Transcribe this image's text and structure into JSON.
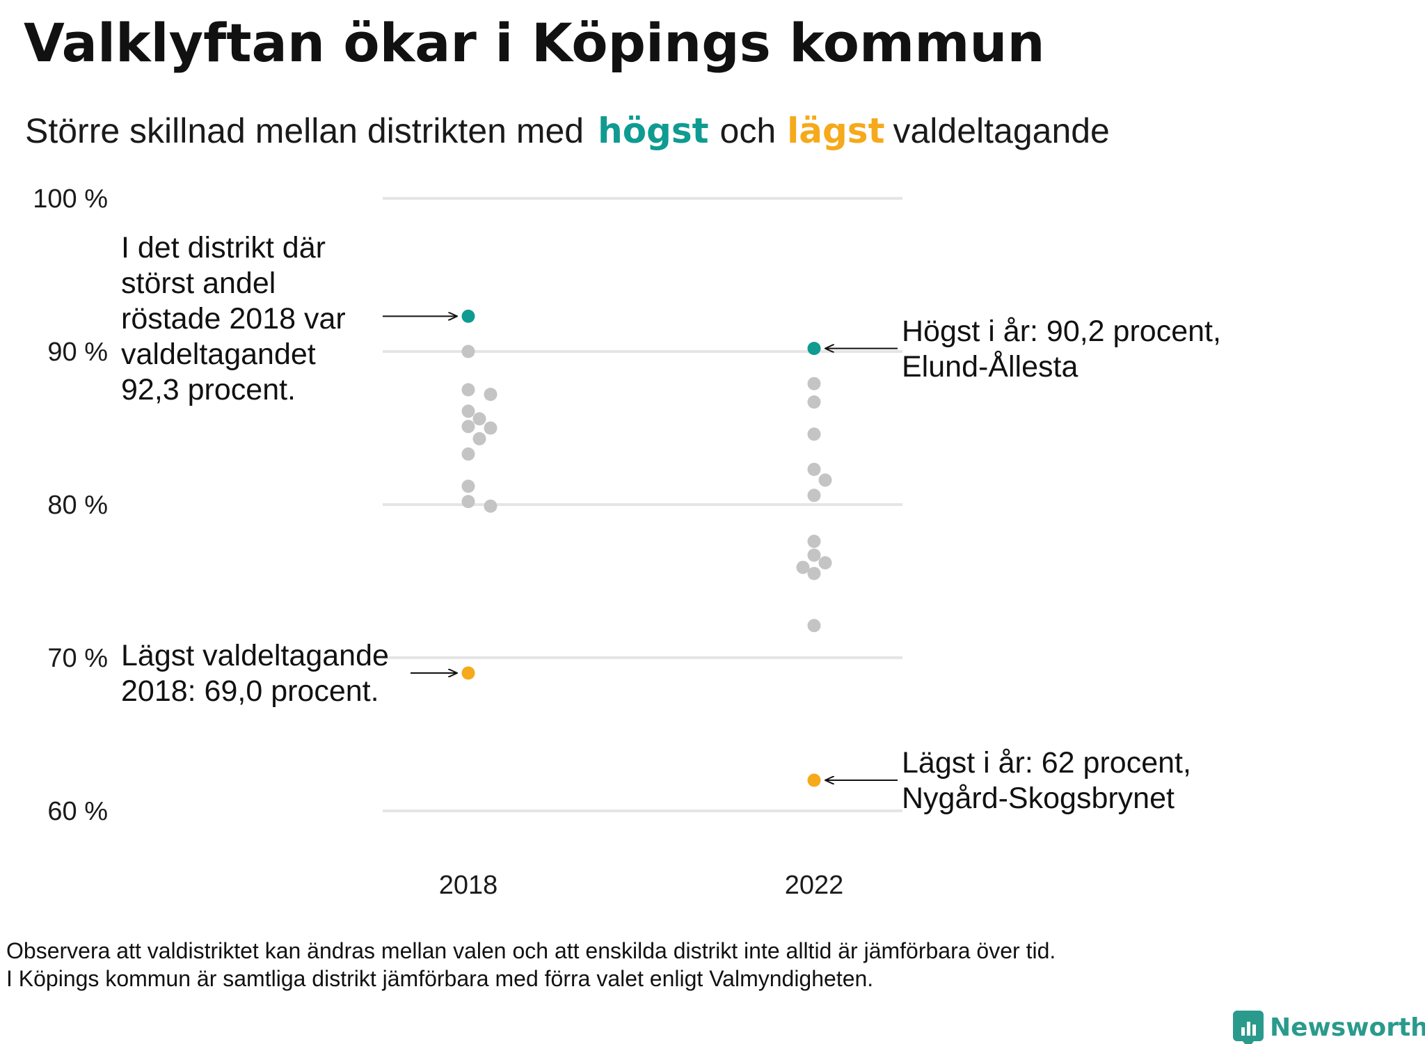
{
  "title": "Valklyftan ökar i Köpings kommun",
  "subtitle": {
    "part1": "Större  skillnad  mellan  distrikten  med",
    "high_word": "högst",
    "part2": "och",
    "low_word": "lägst",
    "part3": "valdeltagande"
  },
  "colors": {
    "high": "#0f9b91",
    "low": "#f5a91b",
    "other": "#c4c4c4",
    "grid": "#e5e5e5",
    "brand": "#2a9a8c"
  },
  "annotations": {
    "high_2018": [
      "I det distrikt där",
      "störst andel",
      "röstade 2018 var",
      "valdeltagandet",
      "92,3 procent."
    ],
    "high_2022": [
      "Högst i år: 90,2 procent,",
      "Elund-Ållesta"
    ],
    "low_2018": [
      "Lägst valdeltagande",
      "2018: 69,0 procent."
    ],
    "low_2022": [
      "Lägst i år: 62 procent,",
      "Nygård-Skogsbrynet"
    ]
  },
  "footnote": [
    "Observera att valdistriktet kan ändras mellan valen och att enskilda distrikt inte alltid är jämförbara över tid.",
    "I Köpings kommun är samtliga distrikt jämförbara med förra valet enligt Valmyndigheten."
  ],
  "brand": {
    "name": "Newsworthy",
    "icon": "newsworthy-logo-icon"
  },
  "chart_data": {
    "type": "scatter",
    "categories": [
      "2018",
      "2022"
    ],
    "ylim": [
      60,
      100
    ],
    "y_ticks": [
      60,
      70,
      80,
      90,
      100
    ],
    "y_tick_labels": [
      "60 %",
      "70 %",
      "80 %",
      "90 %",
      "100 %"
    ],
    "grid": true,
    "series": [
      {
        "category": "2018",
        "values": [
          92.3,
          90.0,
          87.5,
          87.2,
          86.1,
          85.6,
          85.1,
          85.0,
          84.3,
          83.3,
          81.2,
          80.2,
          79.9,
          69.0
        ],
        "highest": 92.3,
        "lowest": 69.0
      },
      {
        "category": "2022",
        "values": [
          90.2,
          87.9,
          86.7,
          84.6,
          82.3,
          81.6,
          80.6,
          77.6,
          76.7,
          76.2,
          75.9,
          75.5,
          72.1,
          62.0
        ],
        "highest": 90.2,
        "lowest": 62.0
      }
    ]
  }
}
